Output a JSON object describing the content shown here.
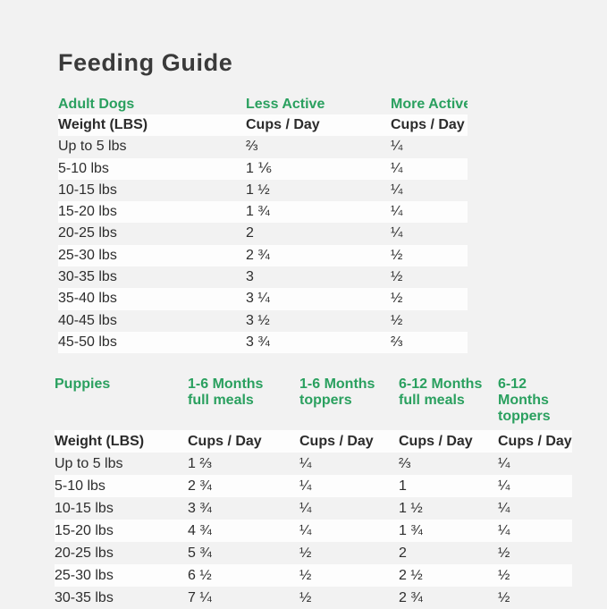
{
  "page": {
    "title": "Feeding Guide",
    "background_color": "#f2f2f2",
    "stripe_color": "#fdfdfd",
    "accent_green": "#2aa05f",
    "text_color": "#2d2d2d"
  },
  "adult_table": {
    "section_label": "Adult Dogs",
    "activity_headers": [
      "Less Active",
      "More Active"
    ],
    "weight_header": "Weight (LBS)",
    "unit_header": "Cups / Day",
    "rows": [
      {
        "weight": "Up to 5 lbs",
        "less_active": "⅔",
        "more_active": "¼"
      },
      {
        "weight": "5-10 lbs",
        "less_active": "1 ⅙",
        "more_active": "¼"
      },
      {
        "weight": "10-15 lbs",
        "less_active": "1 ½",
        "more_active": "¼"
      },
      {
        "weight": "15-20 lbs",
        "less_active": "1 ¾",
        "more_active": "¼"
      },
      {
        "weight": "20-25 lbs",
        "less_active": "2",
        "more_active": "¼"
      },
      {
        "weight": "25-30 lbs",
        "less_active": "2 ¾",
        "more_active": "½"
      },
      {
        "weight": "30-35 lbs",
        "less_active": "3",
        "more_active": "½"
      },
      {
        "weight": "35-40 lbs",
        "less_active": "3 ¼",
        "more_active": "½"
      },
      {
        "weight": "40-45 lbs",
        "less_active": "3 ½",
        "more_active": "½"
      },
      {
        "weight": "45-50 lbs",
        "less_active": "3 ¾",
        "more_active": "⅔"
      }
    ]
  },
  "puppies_table": {
    "section_label": "Puppies",
    "age_headers": [
      {
        "line1": "1-6 Months",
        "line2": "full meals"
      },
      {
        "line1": "1-6 Months",
        "line2": "toppers"
      },
      {
        "line1": "6-12 Months",
        "line2": "full meals"
      },
      {
        "line1": "6-12 Months",
        "line2": "toppers"
      }
    ],
    "weight_header": "Weight (LBS)",
    "unit_header": "Cups / Day",
    "rows": [
      {
        "weight": "Up to 5 lbs",
        "values": [
          "1 ⅔",
          "¼",
          "⅔",
          "¼"
        ]
      },
      {
        "weight": "5-10 lbs",
        "values": [
          "2 ¾",
          "¼",
          "1",
          "¼"
        ]
      },
      {
        "weight": "10-15 lbs",
        "values": [
          "3 ¾",
          "¼",
          "1 ½",
          "¼"
        ]
      },
      {
        "weight": "15-20 lbs",
        "values": [
          "4 ¾",
          "¼",
          "1 ¾",
          "¼"
        ]
      },
      {
        "weight": "20-25 lbs",
        "values": [
          "5 ¾",
          "½",
          "2",
          "½"
        ]
      },
      {
        "weight": "25-30 lbs",
        "values": [
          "6 ½",
          "½",
          "2 ½",
          "½"
        ]
      },
      {
        "weight": "30-35 lbs",
        "values": [
          "7 ¼",
          "½",
          "2 ¾",
          "½"
        ]
      }
    ]
  }
}
